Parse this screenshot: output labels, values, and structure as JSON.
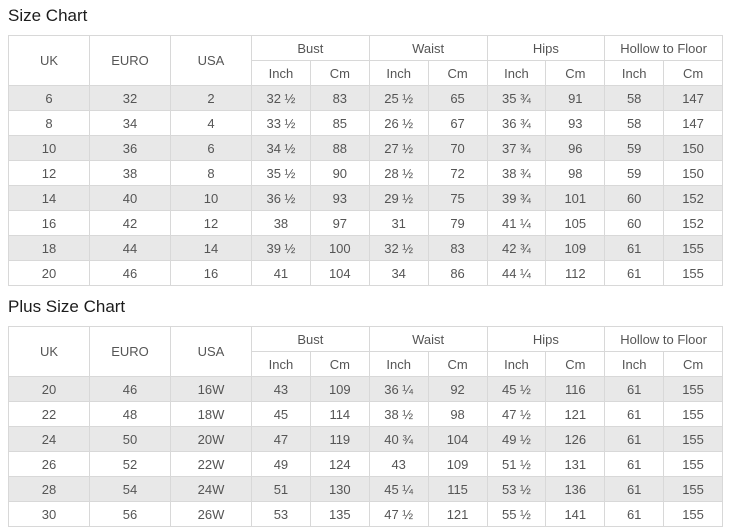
{
  "colors": {
    "row_stripe": "#e8e8e8",
    "row_plain": "#ffffff",
    "border": "#d8d8d8",
    "cell_text": "#555555",
    "title_text": "#1c1c1c"
  },
  "charts": [
    {
      "title": "Size Chart",
      "header": {
        "size_columns": [
          "UK",
          "EURO",
          "USA"
        ],
        "groups": [
          "Bust",
          "Waist",
          "Hips",
          "Hollow to Floor"
        ],
        "sub_columns": [
          "Inch",
          "Cm"
        ]
      },
      "rows": [
        [
          "6",
          "32",
          "2",
          "32 ½",
          "83",
          "25 ½",
          "65",
          "35 ¾",
          "91",
          "58",
          "147"
        ],
        [
          "8",
          "34",
          "4",
          "33 ½",
          "85",
          "26 ½",
          "67",
          "36 ¾",
          "93",
          "58",
          "147"
        ],
        [
          "10",
          "36",
          "6",
          "34 ½",
          "88",
          "27 ½",
          "70",
          "37 ¾",
          "96",
          "59",
          "150"
        ],
        [
          "12",
          "38",
          "8",
          "35 ½",
          "90",
          "28 ½",
          "72",
          "38 ¾",
          "98",
          "59",
          "150"
        ],
        [
          "14",
          "40",
          "10",
          "36 ½",
          "93",
          "29 ½",
          "75",
          "39 ¾",
          "101",
          "60",
          "152"
        ],
        [
          "16",
          "42",
          "12",
          "38",
          "97",
          "31",
          "79",
          "41 ¼",
          "105",
          "60",
          "152"
        ],
        [
          "18",
          "44",
          "14",
          "39 ½",
          "100",
          "32 ½",
          "83",
          "42 ¾",
          "109",
          "61",
          "155"
        ],
        [
          "20",
          "46",
          "16",
          "41",
          "104",
          "34",
          "86",
          "44 ¼",
          "112",
          "61",
          "155"
        ]
      ]
    },
    {
      "title": "Plus Size Chart",
      "header": {
        "size_columns": [
          "UK",
          "EURO",
          "USA"
        ],
        "groups": [
          "Bust",
          "Waist",
          "Hips",
          "Hollow to Floor"
        ],
        "sub_columns": [
          "Inch",
          "Cm"
        ]
      },
      "rows": [
        [
          "20",
          "46",
          "16W",
          "43",
          "109",
          "36 ¼",
          "92",
          "45 ½",
          "116",
          "61",
          "155"
        ],
        [
          "22",
          "48",
          "18W",
          "45",
          "114",
          "38 ½",
          "98",
          "47 ½",
          "121",
          "61",
          "155"
        ],
        [
          "24",
          "50",
          "20W",
          "47",
          "119",
          "40 ¾",
          "104",
          "49 ½",
          "126",
          "61",
          "155"
        ],
        [
          "26",
          "52",
          "22W",
          "49",
          "124",
          "43",
          "109",
          "51 ½",
          "131",
          "61",
          "155"
        ],
        [
          "28",
          "54",
          "24W",
          "51",
          "130",
          "45 ¼",
          "115",
          "53 ½",
          "136",
          "61",
          "155"
        ],
        [
          "30",
          "56",
          "26W",
          "53",
          "135",
          "47 ½",
          "121",
          "55 ½",
          "141",
          "61",
          "155"
        ]
      ]
    }
  ]
}
